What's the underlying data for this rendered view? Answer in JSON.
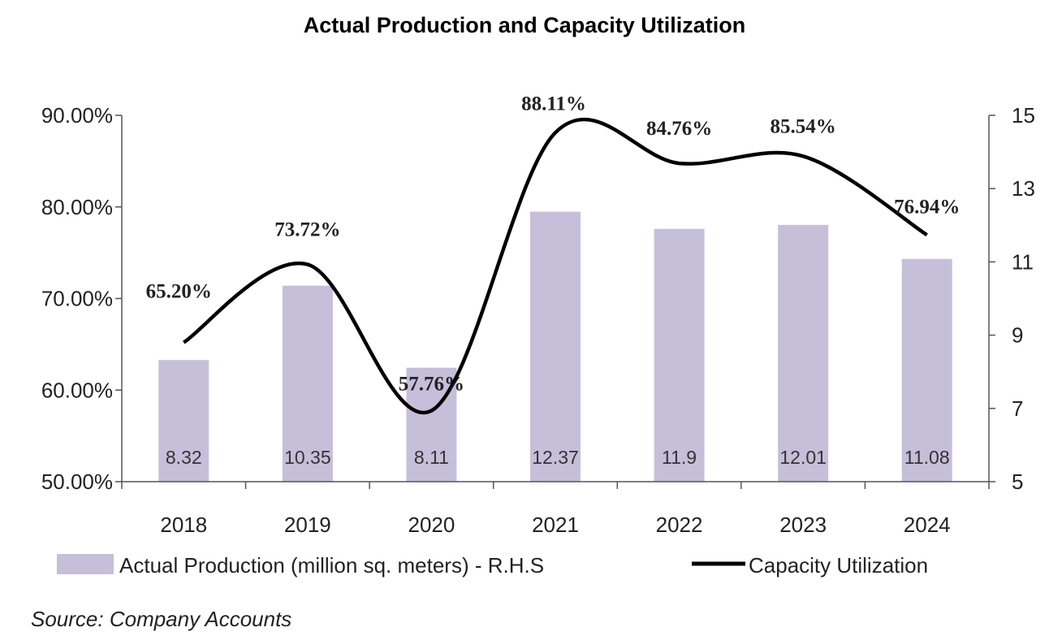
{
  "chart_data": {
    "type": "bar",
    "title": "Actual Production and Capacity Utilization",
    "categories": [
      "2018",
      "2019",
      "2020",
      "2021",
      "2022",
      "2023",
      "2024"
    ],
    "series": [
      {
        "name": "Actual Production (million sq. meters) - R.H.S",
        "type": "bar",
        "axis": "right",
        "values": [
          8.32,
          10.35,
          8.11,
          12.37,
          11.9,
          12.01,
          11.08
        ],
        "labels": [
          "8.32",
          "10.35",
          "8.11",
          "12.37",
          "11.9",
          "12.01",
          "11.08"
        ],
        "color": "#c5bfda"
      },
      {
        "name": "Capacity Utilization",
        "type": "line",
        "axis": "left",
        "values": [
          65.2,
          73.72,
          57.76,
          88.11,
          84.76,
          85.54,
          76.94
        ],
        "labels": [
          "65.20%",
          "73.72%",
          "57.76%",
          "88.11%",
          "84.76%",
          "85.54%",
          "76.94%"
        ],
        "color": "#000000"
      }
    ],
    "y_left": {
      "ylim": [
        50,
        90
      ],
      "ticks": [
        "50.00%",
        "60.00%",
        "70.00%",
        "80.00%",
        "90.00%"
      ],
      "tick_values": [
        50,
        60,
        70,
        80,
        90
      ]
    },
    "y_right": {
      "ylim": [
        5,
        15
      ],
      "ticks": [
        "5",
        "7",
        "9",
        "11",
        "13",
        "15"
      ],
      "tick_values": [
        5,
        7,
        9,
        11,
        13,
        15
      ]
    },
    "legend": {
      "placement": "bottom",
      "entries": [
        "Actual Production (million sq. meters) - R.H.S",
        "Capacity Utilization"
      ]
    },
    "grid": false
  },
  "source_note": "Source: Company Accounts"
}
